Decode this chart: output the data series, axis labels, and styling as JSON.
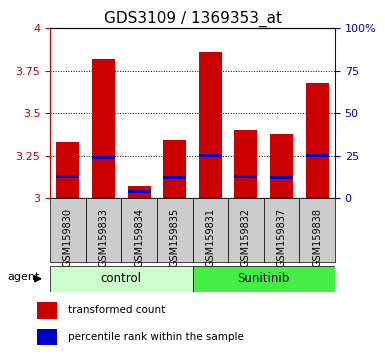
{
  "title": "GDS3109 / 1369353_at",
  "samples": [
    "GSM159830",
    "GSM159833",
    "GSM159834",
    "GSM159835",
    "GSM159831",
    "GSM159832",
    "GSM159837",
    "GSM159838"
  ],
  "red_values": [
    3.33,
    3.82,
    3.07,
    3.34,
    3.86,
    3.4,
    3.38,
    3.68
  ],
  "blue_values": [
    3.13,
    3.24,
    3.04,
    3.12,
    3.25,
    3.13,
    3.12,
    3.25
  ],
  "ylim": [
    3.0,
    4.0
  ],
  "yticks": [
    3.0,
    3.25,
    3.5,
    3.75,
    4.0
  ],
  "ytick_labels": [
    "3",
    "3.25",
    "3.5",
    "3.75",
    "4"
  ],
  "right_yticks": [
    0,
    25,
    50,
    75,
    100
  ],
  "right_ylabels": [
    "0",
    "25",
    "50",
    "75",
    "100%"
  ],
  "base": 3.0,
  "bar_width": 0.65,
  "red_color": "#cc0000",
  "blue_color": "#0000cc",
  "control_bg": "#ccffcc",
  "sunitinib_bg": "#44ee44",
  "tick_bg": "#cccccc",
  "legend_red": "transformed count",
  "legend_blue": "percentile rank within the sample",
  "title_fontsize": 11,
  "axis_color_red": "#cc0000",
  "axis_color_blue": "#0000cc",
  "ytick_fontsize": 8,
  "xtick_fontsize": 7
}
